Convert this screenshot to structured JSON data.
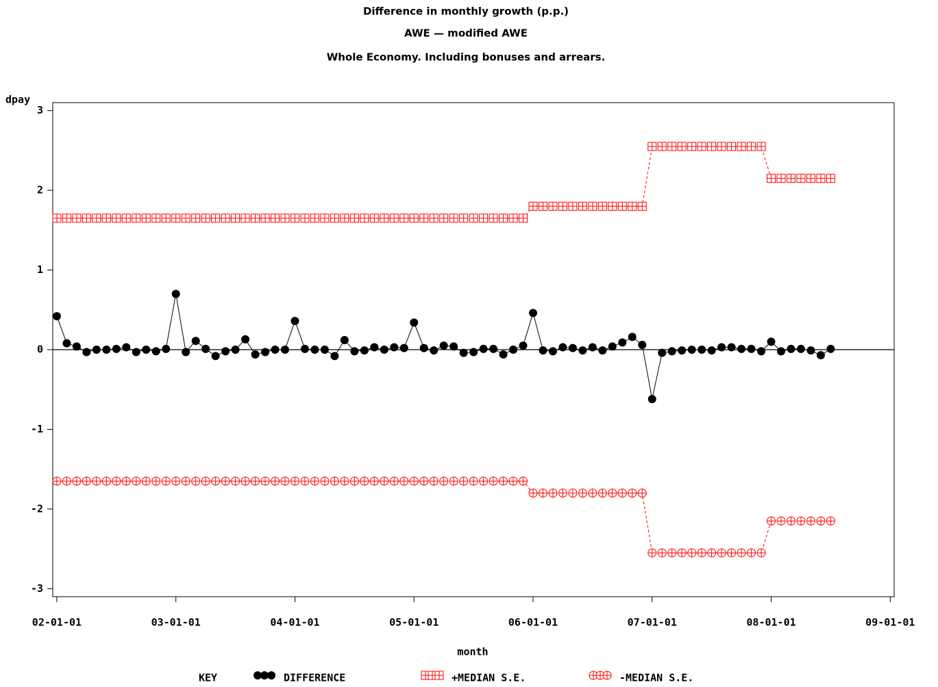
{
  "chart_data": {
    "type": "line",
    "title": "Difference in monthly growth (p.p.)",
    "subtitle": "AWE — modified AWE",
    "subtitle2": "Whole Economy. Including bonuses and arrears.",
    "y_label": "dpay",
    "x_label": "month",
    "legend": {
      "title": "KEY",
      "position": "bottom"
    },
    "reference_line": 0,
    "x": [
      "02-01-01",
      "02-02-01",
      "02-03-01",
      "02-04-01",
      "02-05-01",
      "02-06-01",
      "02-07-01",
      "02-08-01",
      "02-09-01",
      "02-10-01",
      "02-11-01",
      "02-12-01",
      "03-01-01",
      "03-02-01",
      "03-03-01",
      "03-04-01",
      "03-05-01",
      "03-06-01",
      "03-07-01",
      "03-08-01",
      "03-09-01",
      "03-10-01",
      "03-11-01",
      "03-12-01",
      "04-01-01",
      "04-02-01",
      "04-03-01",
      "04-04-01",
      "04-05-01",
      "04-06-01",
      "04-07-01",
      "04-08-01",
      "04-09-01",
      "04-10-01",
      "04-11-01",
      "04-12-01",
      "05-01-01",
      "05-02-01",
      "05-03-01",
      "05-04-01",
      "05-05-01",
      "05-06-01",
      "05-07-01",
      "05-08-01",
      "05-09-01",
      "05-10-01",
      "05-11-01",
      "05-12-01",
      "06-01-01",
      "06-02-01",
      "06-03-01",
      "06-04-01",
      "06-05-01",
      "06-06-01",
      "06-07-01",
      "06-08-01",
      "06-09-01",
      "06-10-01",
      "06-11-01",
      "06-12-01",
      "07-01-01",
      "07-02-01",
      "07-03-01",
      "07-04-01",
      "07-05-01",
      "07-06-01",
      "07-07-01",
      "07-08-01",
      "07-09-01",
      "07-10-01",
      "07-11-01",
      "07-12-01",
      "08-01-01",
      "08-02-01",
      "08-03-01",
      "08-04-01",
      "08-05-01",
      "08-06-01",
      "08-07-01"
    ],
    "series": [
      {
        "name": "DIFFERENCE",
        "color": "#000000",
        "marker": "dot",
        "line": "solid",
        "values": [
          0.42,
          0.08,
          0.04,
          -0.03,
          0,
          0,
          0.01,
          0.03,
          -0.03,
          0,
          -0.02,
          0.01,
          0.7,
          -0.03,
          0.11,
          0.01,
          -0.08,
          -0.02,
          0,
          0.13,
          -0.06,
          -0.03,
          0,
          0,
          0.36,
          0.01,
          0,
          0,
          -0.08,
          0.12,
          -0.02,
          -0.01,
          0.03,
          0,
          0.03,
          0.02,
          0.34,
          0.02,
          -0.01,
          0.05,
          0.04,
          -0.04,
          -0.03,
          0.01,
          0.01,
          -0.06,
          0,
          0.05,
          0.46,
          -0.01,
          -0.02,
          0.03,
          0.02,
          -0.01,
          0.03,
          -0.01,
          0.04,
          0.09,
          0.16,
          0.06,
          -0.62,
          -0.04,
          -0.02,
          -0.01,
          0,
          0,
          -0.01,
          0.03,
          0.03,
          0.01,
          0.01,
          -0.02,
          0.1,
          -0.02,
          0.01,
          0.01,
          -0.01,
          -0.07,
          0.01
        ]
      },
      {
        "name": "+MEDIAN S.E.",
        "color": "#ff0000",
        "marker": "square-plus",
        "line": "dashed",
        "values": [
          1.65,
          1.65,
          1.65,
          1.65,
          1.65,
          1.65,
          1.65,
          1.65,
          1.65,
          1.65,
          1.65,
          1.65,
          1.65,
          1.65,
          1.65,
          1.65,
          1.65,
          1.65,
          1.65,
          1.65,
          1.65,
          1.65,
          1.65,
          1.65,
          1.65,
          1.65,
          1.65,
          1.65,
          1.65,
          1.65,
          1.65,
          1.65,
          1.65,
          1.65,
          1.65,
          1.65,
          1.65,
          1.65,
          1.65,
          1.65,
          1.65,
          1.65,
          1.65,
          1.65,
          1.65,
          1.65,
          1.65,
          1.65,
          1.8,
          1.8,
          1.8,
          1.8,
          1.8,
          1.8,
          1.8,
          1.8,
          1.8,
          1.8,
          1.8,
          1.8,
          2.55,
          2.55,
          2.55,
          2.55,
          2.55,
          2.55,
          2.55,
          2.55,
          2.55,
          2.55,
          2.55,
          2.55,
          2.15,
          2.15,
          2.15,
          2.15,
          2.15,
          2.15,
          2.15
        ]
      },
      {
        "name": "-MEDIAN S.E.",
        "color": "#ff0000",
        "marker": "circle-plus",
        "line": "dashed",
        "values": [
          -1.65,
          -1.65,
          -1.65,
          -1.65,
          -1.65,
          -1.65,
          -1.65,
          -1.65,
          -1.65,
          -1.65,
          -1.65,
          -1.65,
          -1.65,
          -1.65,
          -1.65,
          -1.65,
          -1.65,
          -1.65,
          -1.65,
          -1.65,
          -1.65,
          -1.65,
          -1.65,
          -1.65,
          -1.65,
          -1.65,
          -1.65,
          -1.65,
          -1.65,
          -1.65,
          -1.65,
          -1.65,
          -1.65,
          -1.65,
          -1.65,
          -1.65,
          -1.65,
          -1.65,
          -1.65,
          -1.65,
          -1.65,
          -1.65,
          -1.65,
          -1.65,
          -1.65,
          -1.65,
          -1.65,
          -1.65,
          -1.8,
          -1.8,
          -1.8,
          -1.8,
          -1.8,
          -1.8,
          -1.8,
          -1.8,
          -1.8,
          -1.8,
          -1.8,
          -1.8,
          -2.55,
          -2.55,
          -2.55,
          -2.55,
          -2.55,
          -2.55,
          -2.55,
          -2.55,
          -2.55,
          -2.55,
          -2.55,
          -2.55,
          -2.15,
          -2.15,
          -2.15,
          -2.15,
          -2.15,
          -2.15,
          -2.15
        ]
      }
    ],
    "xlim": [
      "01-12-19",
      "09-01-13"
    ],
    "xticks": [
      "02-01-01",
      "03-01-01",
      "04-01-01",
      "05-01-01",
      "06-01-01",
      "07-01-01",
      "08-01-01",
      "09-01-01"
    ],
    "ylim": [
      -3.1,
      3.1
    ],
    "yticks": [
      -3,
      -2,
      -1,
      0,
      1,
      2,
      3
    ]
  }
}
